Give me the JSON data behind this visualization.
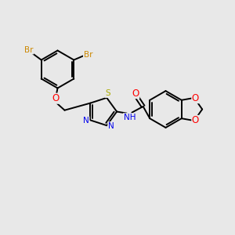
{
  "background_color": "#e8e8e8",
  "figsize": [
    3.0,
    3.0
  ],
  "dpi": 100,
  "atom_colors": {
    "Br": "#cc8800",
    "O": "#ff0000",
    "N": "#0000ee",
    "S": "#aaaa00",
    "C": "#000000",
    "H": "#006600"
  },
  "bond_color": "#000000",
  "bond_width": 1.4
}
